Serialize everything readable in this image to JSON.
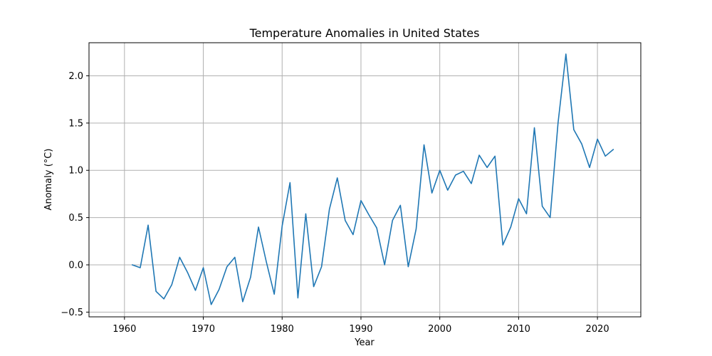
{
  "chart_data": {
    "type": "line",
    "title": "Temperature Anomalies in United States",
    "xlabel": "Year",
    "ylabel": "Anomaly (°C)",
    "xlim": [
      1955.5,
      2025.5
    ],
    "ylim": [
      -0.55,
      2.35
    ],
    "xticks": [
      1960,
      1970,
      1980,
      1990,
      2000,
      2010,
      2020
    ],
    "yticks": [
      -0.5,
      0.0,
      0.5,
      1.0,
      1.5,
      2.0
    ],
    "ytick_labels": [
      "−0.5",
      "0.0",
      "0.5",
      "1.0",
      "1.5",
      "2.0"
    ],
    "grid": true,
    "line_color": "#1f77b4",
    "series": [
      {
        "x": [
          1961,
          1962,
          1963,
          1964,
          1965,
          1966,
          1967,
          1968,
          1969,
          1970,
          1971,
          1972,
          1973,
          1974,
          1975,
          1976,
          1977,
          1978,
          1979,
          1980,
          1981,
          1982,
          1983,
          1984,
          1985,
          1986,
          1987,
          1988,
          1989,
          1990,
          1991,
          1992,
          1993,
          1994,
          1995,
          1996,
          1997,
          1998,
          1999,
          2000,
          2001,
          2002,
          2003,
          2004,
          2005,
          2006,
          2007,
          2008,
          2009,
          2010,
          2011,
          2012,
          2013,
          2014,
          2015,
          2016,
          2017,
          2018,
          2019,
          2020,
          2021,
          2022
        ],
        "y": [
          0.0,
          -0.03,
          0.42,
          -0.28,
          -0.36,
          -0.21,
          0.08,
          -0.08,
          -0.27,
          -0.03,
          -0.42,
          -0.26,
          -0.02,
          0.08,
          -0.39,
          -0.13,
          0.4,
          0.03,
          -0.31,
          0.41,
          0.87,
          -0.35,
          0.54,
          -0.23,
          -0.02,
          0.59,
          0.92,
          0.47,
          0.32,
          0.68,
          0.53,
          0.39,
          0.0,
          0.47,
          0.63,
          -0.02,
          0.38,
          1.27,
          0.76,
          1.0,
          0.79,
          0.95,
          0.99,
          0.86,
          1.16,
          1.03,
          1.15,
          0.21,
          0.4,
          0.7,
          0.54,
          1.45,
          0.62,
          0.5,
          1.5,
          2.23,
          1.43,
          1.28,
          1.03,
          1.33,
          1.15,
          1.22
        ]
      }
    ]
  }
}
